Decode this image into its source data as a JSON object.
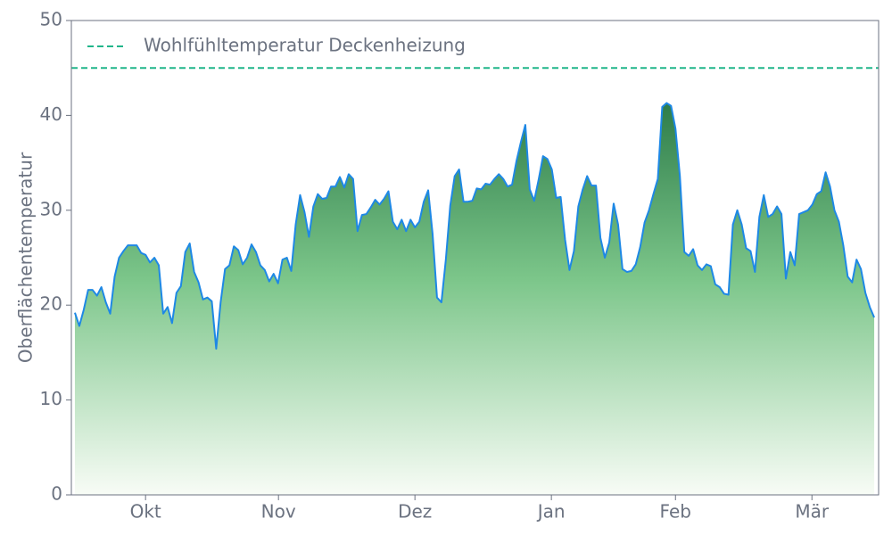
{
  "chart_data": {
    "type": "area",
    "y_label": "Oberflächentemperatur",
    "series": [
      {
        "color": "#1e88e5",
        "values": [
          19.2,
          17.8,
          19.5,
          21.6,
          21.6,
          21.0,
          21.9,
          20.3,
          19.1,
          23.0,
          25.0,
          25.7,
          26.3,
          26.3,
          26.3,
          25.5,
          25.3,
          24.5,
          25.0,
          24.2,
          19.1,
          19.8,
          18.1,
          21.3,
          22.0,
          25.6,
          26.5,
          23.5,
          22.4,
          20.6,
          20.8,
          20.4,
          15.4,
          20.3,
          23.8,
          24.2,
          26.2,
          25.8,
          24.3,
          25.0,
          26.4,
          25.6,
          24.2,
          23.7,
          22.5,
          23.3,
          22.3,
          24.8,
          25.0,
          23.6,
          28.5,
          31.6,
          29.8,
          27.2,
          30.4,
          31.7,
          31.2,
          31.3,
          32.5,
          32.5,
          33.5,
          32.4,
          33.8,
          33.3,
          27.8,
          29.5,
          29.6,
          30.3,
          31.1,
          30.6,
          31.2,
          32.0,
          28.8,
          28.0,
          29.0,
          27.8,
          29.0,
          28.2,
          28.8,
          30.9,
          32.1,
          27.5,
          20.8,
          20.3,
          24.8,
          30.5,
          33.6,
          34.3,
          30.9,
          30.9,
          31.0,
          32.3,
          32.2,
          32.8,
          32.7,
          33.3,
          33.8,
          33.3,
          32.5,
          32.7,
          35.2,
          37.2,
          39.0,
          32.2,
          31.0,
          33.2,
          35.7,
          35.4,
          34.3,
          31.3,
          31.4,
          26.9,
          23.7,
          25.7,
          30.4,
          32.2,
          33.6,
          32.6,
          32.6,
          27.1,
          25.0,
          26.6,
          30.7,
          28.5,
          23.8,
          23.5,
          23.6,
          24.3,
          26.1,
          28.7,
          30.0,
          31.7,
          33.3,
          40.9,
          41.3,
          41.0,
          38.6,
          33.6,
          25.6,
          25.2,
          25.9,
          24.2,
          23.7,
          24.3,
          24.1,
          22.2,
          21.9,
          21.2,
          21.1,
          28.5,
          30.0,
          28.5,
          26.0,
          25.7,
          23.5,
          29.3,
          31.6,
          29.3,
          29.6,
          30.4,
          29.6,
          22.8,
          25.6,
          24.2,
          29.6,
          29.8,
          30.0,
          30.6,
          31.7,
          32.0,
          34.0,
          32.5,
          30.0,
          28.8,
          26.3,
          23.0,
          22.4,
          24.8,
          23.8,
          21.3,
          19.8,
          18.7
        ]
      }
    ],
    "reference_line": {
      "name": "Wohlfühltemperatur Deckenheizung",
      "value": 45,
      "color": "#20b58a"
    },
    "legend": "upper left",
    "xlim": [
      -0.8,
      182
    ],
    "xticks": [
      {
        "value": 16.0,
        "label": "Okt"
      },
      {
        "value": 46.1,
        "label": "Nov"
      },
      {
        "value": 77.0,
        "label": "Dez"
      },
      {
        "value": 107.9,
        "label": "Jan"
      },
      {
        "value": 136.0,
        "label": "Feb"
      },
      {
        "value": 166.9,
        "label": "Mär"
      }
    ],
    "ylim": [
      0,
      50
    ],
    "yticks": [
      0,
      10,
      20,
      30,
      40,
      50
    ]
  }
}
